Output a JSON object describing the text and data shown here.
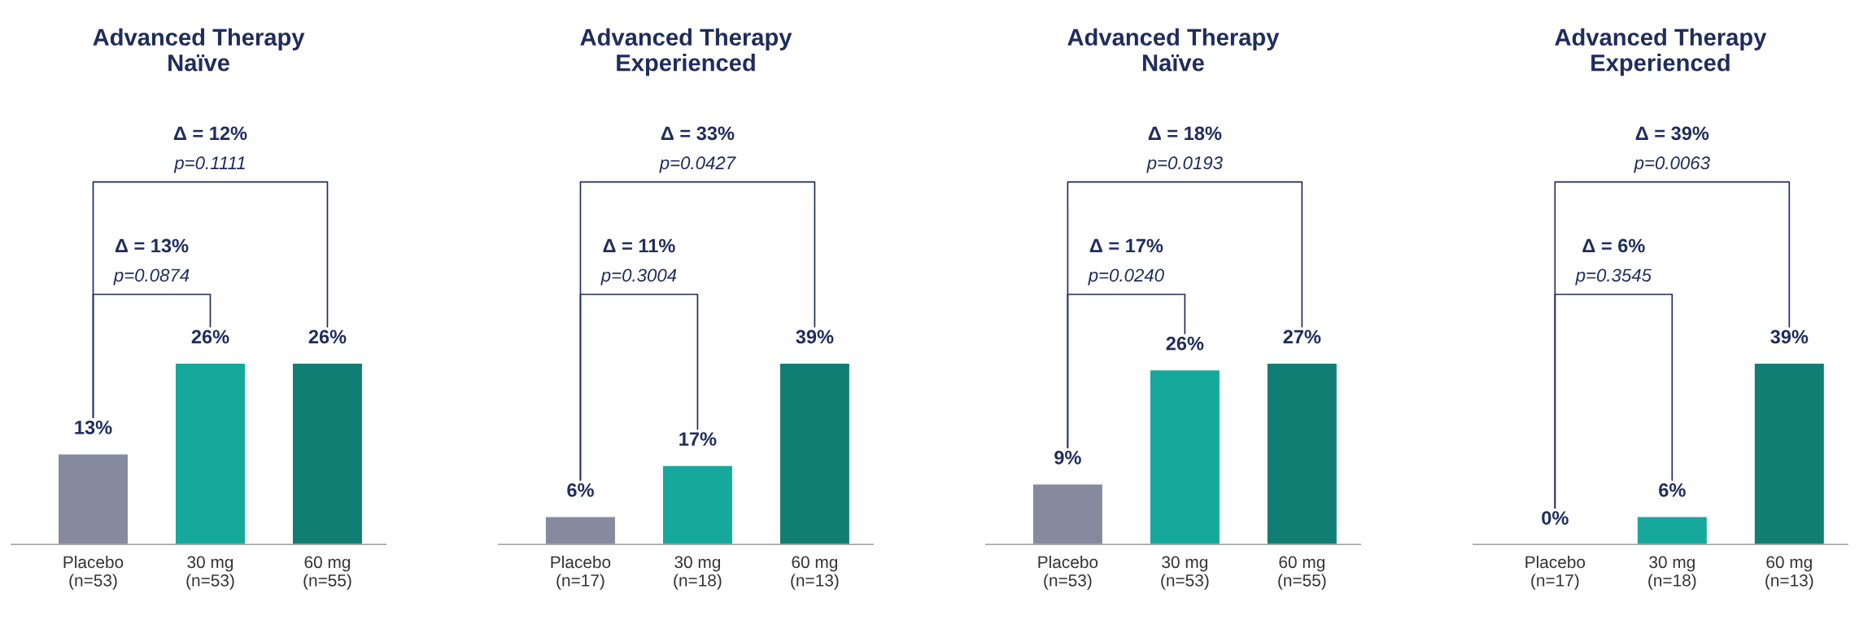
{
  "chart_data": [
    {
      "type": "bar",
      "title": "Advanced Therapy\nNaïve",
      "categories": [
        "Placebo\n(n=53)",
        "30 mg\n(n=53)",
        "60 mg\n(n=55)"
      ],
      "values": [
        13,
        26,
        26
      ],
      "colors": [
        "#868a9e",
        "#17a89c",
        "#117e74"
      ],
      "value_labels": [
        "13%",
        "26%",
        "26%"
      ],
      "annotations": [
        "Δ = 13%\np=0.0874",
        "Δ = 12%\np=0.1111"
      ]
    },
    {
      "type": "bar",
      "title": "Advanced Therapy\nExperienced",
      "categories": [
        "Placebo\n(n=17)",
        "30 mg\n(n=18)",
        "60 mg\n(n=13)"
      ],
      "values": [
        6,
        17,
        39
      ],
      "colors": [
        "#868a9e",
        "#17a89c",
        "#117e74"
      ],
      "value_labels": [
        "6%",
        "17%",
        "39%"
      ],
      "annotations": [
        "Δ = 11%\np=0.3004",
        "Δ = 33%\np=0.0427"
      ]
    },
    {
      "type": "bar",
      "title": "Advanced Therapy\nNaïve",
      "categories": [
        "Placebo\n(n=53)",
        "30 mg\n(n=53)",
        "60 mg\n(n=55)"
      ],
      "values": [
        9,
        26,
        27
      ],
      "colors": [
        "#868a9e",
        "#17a89c",
        "#117e74"
      ],
      "value_labels": [
        "9%",
        "26%",
        "27%"
      ],
      "annotations": [
        "Δ = 17%\np=0.0240",
        "Δ = 18%\np=0.0193"
      ]
    },
    {
      "type": "bar",
      "title": "Advanced Therapy\nExperienced",
      "categories": [
        "Placebo\n(n=17)",
        "30 mg\n(n=18)",
        "60 mg\n(n=13)"
      ],
      "values": [
        0,
        6,
        39
      ],
      "colors": [
        null,
        "#17a89c",
        "#117e74"
      ],
      "value_labels": [
        "0%",
        "6%",
        "39%"
      ],
      "annotations": [
        "Δ = 6%\np=0.3545",
        "Δ = 39%\np=0.0063"
      ]
    }
  ]
}
